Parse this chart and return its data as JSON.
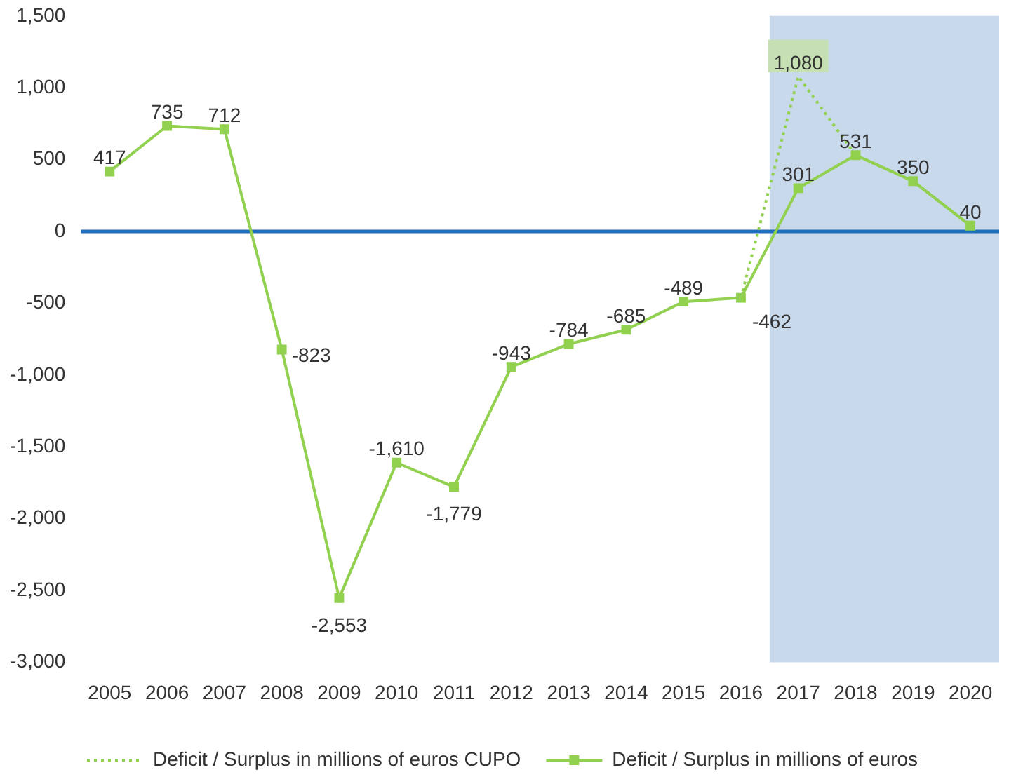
{
  "chart_data": {
    "type": "line",
    "categories": [
      "2005",
      "2006",
      "2007",
      "2008",
      "2009",
      "2010",
      "2011",
      "2012",
      "2013",
      "2014",
      "2015",
      "2016",
      "2017",
      "2018",
      "2019",
      "2020"
    ],
    "series": [
      {
        "name": "Deficit / Surplus in millions of euros CUPO",
        "color": "#92d050",
        "line_style": "dotted",
        "marker": "none",
        "values": [
          null,
          null,
          null,
          null,
          null,
          null,
          null,
          null,
          null,
          null,
          null,
          -462,
          1080,
          531,
          350,
          40
        ],
        "value_labels": [
          null,
          null,
          null,
          null,
          null,
          null,
          null,
          null,
          null,
          null,
          null,
          null,
          "1,080",
          null,
          null,
          null
        ]
      },
      {
        "name": "Deficit / Surplus in millions of euros",
        "color": "#92d050",
        "line_style": "solid",
        "marker": "square",
        "values": [
          417,
          735,
          712,
          -823,
          -2553,
          -1610,
          -1779,
          -943,
          -784,
          -685,
          -489,
          -462,
          301,
          531,
          350,
          40
        ],
        "value_labels": [
          "417",
          "735",
          "712",
          "-823",
          "-2,553",
          "-1,610",
          "-1,779",
          "-943",
          "-784",
          "-685",
          "-489",
          "-462",
          "301",
          "531",
          "350",
          "40"
        ]
      }
    ],
    "ylim": [
      -3000,
      1500
    ],
    "yticks": [
      {
        "value": -3000,
        "label": "-3,000"
      },
      {
        "value": -2500,
        "label": "-2,500"
      },
      {
        "value": -2000,
        "label": "-2,000"
      },
      {
        "value": -1500,
        "label": "-1,500"
      },
      {
        "value": -1000,
        "label": "-1,000"
      },
      {
        "value": -500,
        "label": "-500"
      },
      0,
      500,
      {
        "value": 1000,
        "label": "1,000"
      },
      {
        "value": 1500,
        "label": "1,500"
      }
    ],
    "ref_lines": [
      {
        "axis": "y",
        "value": 0,
        "color": "#1f6fbf"
      }
    ],
    "bands": [
      {
        "axis": "x",
        "from": "2017",
        "to": "2020",
        "color": "#c9d9ec"
      }
    ],
    "grid": false,
    "legend": "bottom"
  }
}
